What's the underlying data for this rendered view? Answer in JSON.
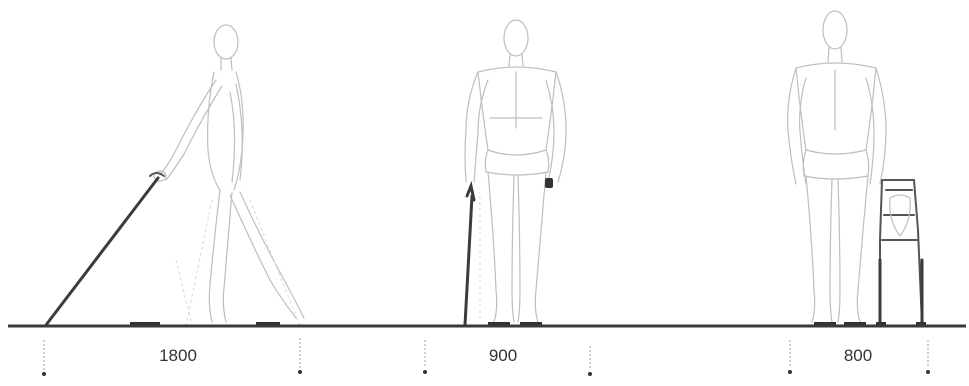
{
  "dimensions": [
    {
      "label": "1800"
    },
    {
      "label": "900"
    },
    {
      "label": "800"
    }
  ],
  "colors": {
    "figure_outline": "#b9bfc7",
    "walking_aid": "#3b3b3b",
    "ground_line": "#3a3a3a",
    "dimension_text": "#333333"
  },
  "figures": [
    {
      "name": "person-walking-with-cane",
      "aid": "cane"
    },
    {
      "name": "person-standing-with-stick",
      "aid": "walking-stick"
    },
    {
      "name": "person-standing-with-walking-frame",
      "aid": "walking-frame"
    }
  ]
}
